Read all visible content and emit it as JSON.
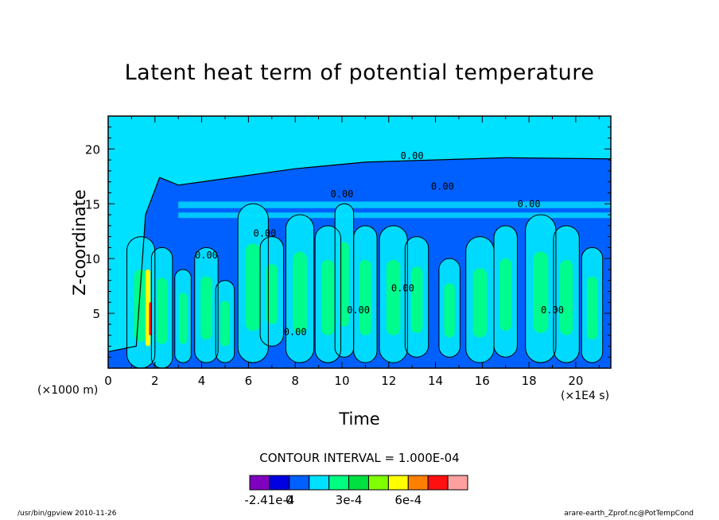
{
  "chart_data": {
    "type": "heatmap",
    "title": "Latent heat term of potential temperature",
    "xlabel": "Time",
    "ylabel": "Z-coordinate",
    "x_unit": "(×1E4 s)",
    "y_unit": "(×1000 m)",
    "xlim": [
      0,
      21.5
    ],
    "ylim": [
      0,
      23
    ],
    "x_ticks": [
      0,
      2,
      4,
      6,
      8,
      10,
      12,
      14,
      16,
      18,
      20
    ],
    "y_ticks": [
      5,
      10,
      15,
      20
    ],
    "contour_interval_text": "CONTOUR INTERVAL = 1.000E-04",
    "contour_labels": [
      "0.00",
      "0.00",
      "0.00",
      "0.00",
      "0.00",
      "0.00",
      "0.00",
      "0.00"
    ],
    "colorbar": {
      "colors": [
        "#8000c0",
        "#0000e0",
        "#0060ff",
        "#00e0ff",
        "#00ff80",
        "#00e040",
        "#80ff00",
        "#ffff00",
        "#ff8000",
        "#ff1010",
        "#ffa0a0"
      ],
      "tick_labels": [
        "-2.41e-4",
        "0",
        "3e-4",
        "6e-4"
      ]
    },
    "background_color": "#00e0ff",
    "negative_color": "#0060ff"
  },
  "footer": {
    "left": "/usr/bin/gpview   2010-11-26",
    "right": "arare-earth_Zprof.nc@PotTempCond"
  }
}
